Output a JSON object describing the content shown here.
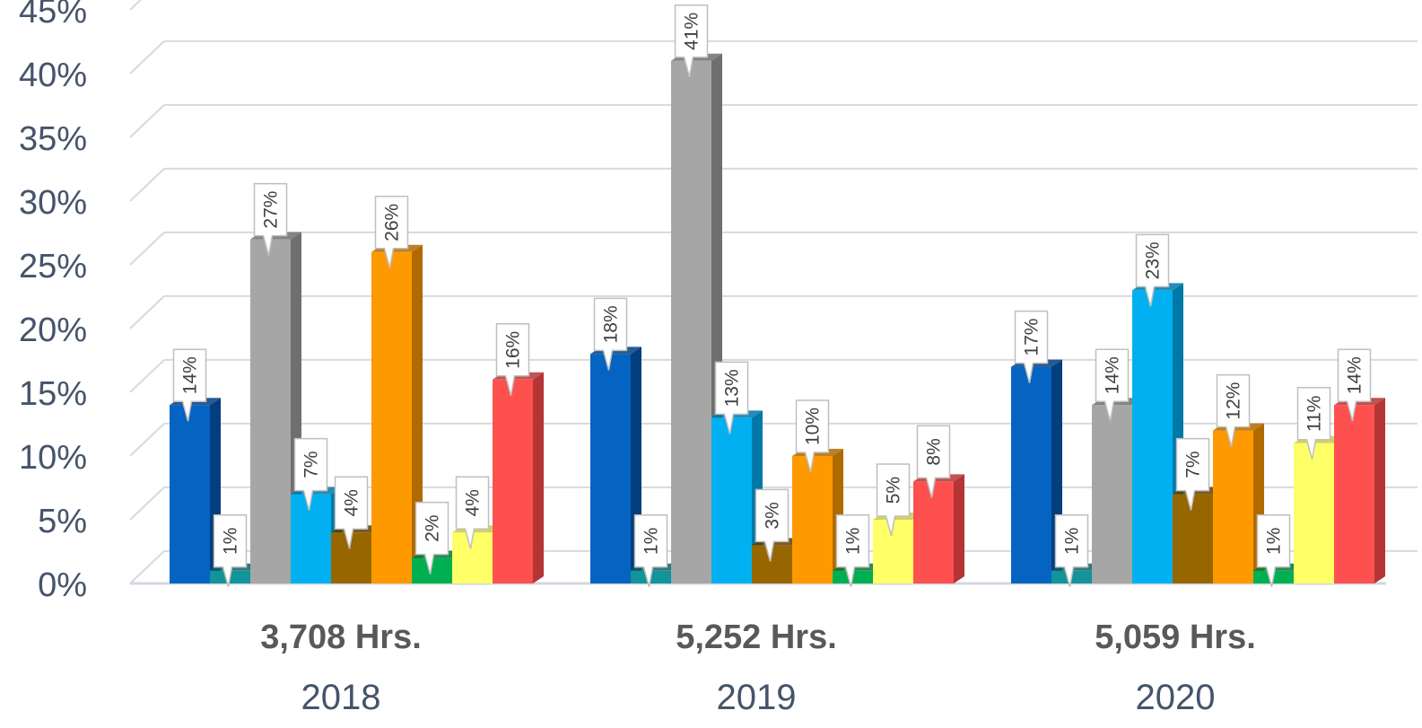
{
  "chart_data": {
    "type": "bar",
    "title": "",
    "xlabel": "",
    "ylabel": "",
    "ylim": [
      0,
      45
    ],
    "y_ticks": [
      "0%",
      "5%",
      "10%",
      "15%",
      "20%",
      "25%",
      "30%",
      "35%",
      "40%",
      "45%"
    ],
    "grid": true,
    "legend": "none",
    "style": "3d-clustered-column",
    "categories": [
      "2018",
      "2019",
      "2020"
    ],
    "category_subtitles": [
      "3,708 Hrs.",
      "5,252 Hrs.",
      "5,059 Hrs."
    ],
    "series": [
      {
        "color": "#0563c1",
        "side_color": "#033e7e",
        "values": [
          14,
          18,
          17
        ],
        "labels": [
          "14%",
          "18%",
          "17%"
        ]
      },
      {
        "color": "#13939a",
        "side_color": "#0b6167",
        "values": [
          1,
          1,
          1
        ],
        "labels": [
          "1%",
          "1%",
          "1%"
        ]
      },
      {
        "color": "#a6a6a6",
        "side_color": "#6f6f6f",
        "values": [
          27,
          41,
          14
        ],
        "labels": [
          "27%",
          "41%",
          "14%"
        ]
      },
      {
        "color": "#00b0f0",
        "side_color": "#0078a8",
        "values": [
          7,
          13,
          23
        ],
        "labels": [
          "7%",
          "13%",
          "23%"
        ]
      },
      {
        "color": "#986600",
        "side_color": "#5f4000",
        "values": [
          4,
          3,
          7
        ],
        "labels": [
          "4%",
          "3%",
          "7%"
        ]
      },
      {
        "color": "#ff9900",
        "side_color": "#b06a00",
        "values": [
          26,
          10,
          12
        ],
        "labels": [
          "26%",
          "10%",
          "12%"
        ]
      },
      {
        "color": "#00b050",
        "side_color": "#007434",
        "values": [
          2,
          1,
          1
        ],
        "labels": [
          "2%",
          "1%",
          "1%"
        ]
      },
      {
        "color": "#ffff66",
        "side_color": "#c9c94a",
        "values": [
          4,
          5,
          11
        ],
        "labels": [
          "4%",
          "5%",
          "11%"
        ]
      },
      {
        "color": "#ff5050",
        "side_color": "#b53535",
        "values": [
          16,
          8,
          14
        ],
        "labels": [
          "16%",
          "8%",
          "14%"
        ]
      }
    ]
  }
}
